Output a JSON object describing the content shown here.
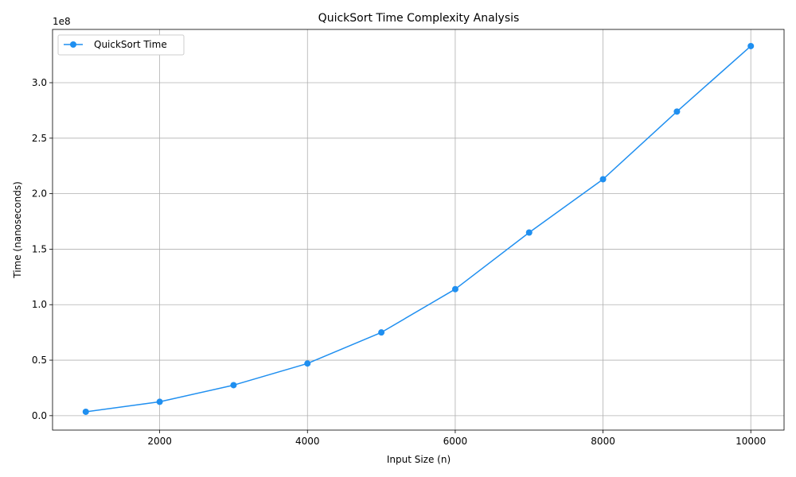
{
  "chart_data": {
    "type": "line",
    "title": "QuickSort Time Complexity Analysis",
    "xlabel": "Input Size (n)",
    "ylabel": "Time (nanoseconds)",
    "y_scale_label": "1e8",
    "grid": true,
    "legend_position": "top-left",
    "xlim": [
      550,
      10450
    ],
    "ylim": [
      -13000000,
      348000000
    ],
    "x_ticks": [
      2000,
      4000,
      6000,
      8000,
      10000
    ],
    "x_tick_labels": [
      "2000",
      "4000",
      "6000",
      "8000",
      "10000"
    ],
    "y_ticks": [
      0,
      50000000,
      100000000,
      150000000,
      200000000,
      250000000,
      300000000
    ],
    "y_tick_labels": [
      "0.0",
      "0.5",
      "1.0",
      "1.5",
      "2.0",
      "2.5",
      "3.0"
    ],
    "series": [
      {
        "name": "QuickSort Time",
        "color": "#1f8ff0",
        "marker": "circle",
        "x": [
          1000,
          2000,
          3000,
          4000,
          5000,
          6000,
          7000,
          8000,
          9000,
          10000
        ],
        "y": [
          3500000,
          12500000,
          27500000,
          47000000,
          75000000,
          114000000,
          165000000,
          213000000,
          274000000,
          333000000
        ]
      }
    ]
  }
}
